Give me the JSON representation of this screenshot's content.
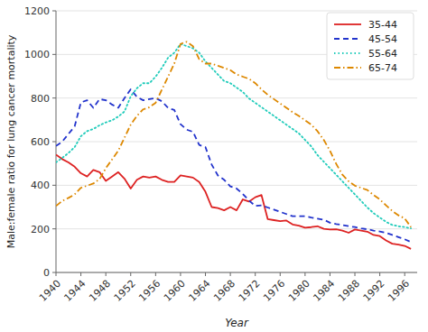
{
  "chart_data": {
    "type": "line",
    "x_label": "Year",
    "y_label": "Male:female ratio for lung cancer mortality",
    "x": [
      1940,
      1941,
      1942,
      1943,
      1944,
      1945,
      1946,
      1947,
      1948,
      1949,
      1950,
      1951,
      1952,
      1953,
      1954,
      1955,
      1956,
      1957,
      1958,
      1959,
      1960,
      1961,
      1962,
      1963,
      1964,
      1965,
      1966,
      1967,
      1968,
      1969,
      1970,
      1971,
      1972,
      1973,
      1974,
      1975,
      1976,
      1977,
      1978,
      1979,
      1980,
      1981,
      1982,
      1983,
      1984,
      1985,
      1986,
      1987,
      1988,
      1989,
      1990,
      1991,
      1992,
      1993,
      1994,
      1995,
      1996,
      1997
    ],
    "series": [
      {
        "name": "35-44",
        "color": "#dd2222",
        "line_style": "solid",
        "values": [
          540,
          520,
          505,
          485,
          455,
          440,
          470,
          460,
          420,
          440,
          460,
          430,
          385,
          425,
          440,
          435,
          440,
          425,
          415,
          415,
          445,
          440,
          435,
          415,
          370,
          300,
          295,
          285,
          300,
          285,
          335,
          325,
          345,
          355,
          245,
          240,
          235,
          238,
          220,
          215,
          205,
          208,
          212,
          200,
          197,
          198,
          192,
          182,
          197,
          192,
          187,
          172,
          167,
          147,
          132,
          128,
          122,
          108
        ]
      },
      {
        "name": "45-54",
        "color": "#2233cc",
        "line_style": "dashed",
        "values": [
          580,
          600,
          635,
          670,
          780,
          790,
          755,
          795,
          790,
          770,
          755,
          800,
          840,
          805,
          790,
          795,
          800,
          785,
          755,
          745,
          680,
          655,
          645,
          585,
          575,
          495,
          445,
          425,
          395,
          385,
          360,
          330,
          305,
          308,
          298,
          288,
          278,
          268,
          258,
          258,
          258,
          252,
          247,
          242,
          228,
          222,
          218,
          212,
          208,
          202,
          198,
          192,
          188,
          182,
          172,
          162,
          152,
          140
        ]
      },
      {
        "name": "55-64",
        "color": "#22ccbb",
        "line_style": "dotted",
        "values": [
          505,
          525,
          548,
          575,
          625,
          648,
          658,
          675,
          688,
          698,
          715,
          738,
          808,
          845,
          868,
          868,
          898,
          938,
          985,
          1008,
          1048,
          1038,
          1028,
          1008,
          968,
          938,
          908,
          878,
          868,
          848,
          828,
          798,
          778,
          758,
          738,
          718,
          698,
          678,
          658,
          638,
          608,
          578,
          538,
          508,
          478,
          448,
          418,
          388,
          358,
          328,
          298,
          272,
          252,
          232,
          218,
          212,
          208,
          202
        ]
      },
      {
        "name": "65-74",
        "color": "#dd8800",
        "line_style": "dashdot",
        "values": [
          305,
          328,
          342,
          358,
          388,
          398,
          408,
          428,
          478,
          518,
          558,
          618,
          678,
          718,
          748,
          758,
          778,
          838,
          898,
          958,
          1048,
          1058,
          1038,
          978,
          958,
          958,
          948,
          938,
          928,
          908,
          898,
          888,
          868,
          840,
          815,
          795,
          775,
          755,
          735,
          718,
          698,
          678,
          648,
          608,
          558,
          498,
          448,
          418,
          398,
          388,
          378,
          355,
          335,
          308,
          282,
          262,
          248,
          208
        ]
      }
    ],
    "xlim": [
      1940,
      1998
    ],
    "ylim": [
      0,
      1200
    ],
    "xticks": [
      1940,
      1944,
      1948,
      1952,
      1956,
      1960,
      1964,
      1968,
      1972,
      1976,
      1980,
      1984,
      1988,
      1992,
      1996
    ],
    "yticks": [
      0,
      200,
      400,
      600,
      800,
      1000,
      1200
    ],
    "grid": true,
    "legend": "upper-right"
  }
}
